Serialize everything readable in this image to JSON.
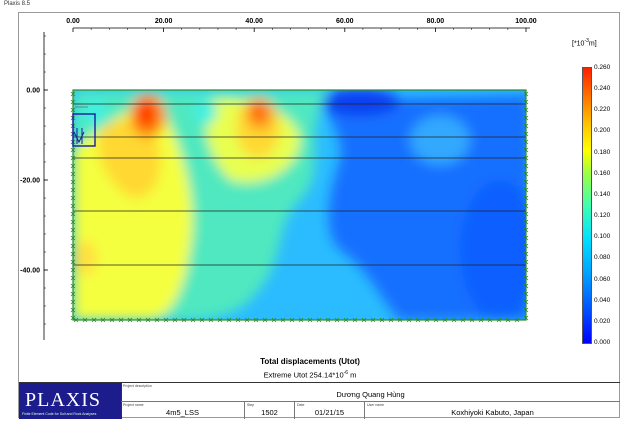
{
  "window": {
    "title": "Plaxis 8.5"
  },
  "x_axis": {
    "ticks": [
      "0.00",
      "20.00",
      "40.00",
      "60.00",
      "80.00",
      "100.00"
    ]
  },
  "y_axis": {
    "ticks": [
      "0.00",
      "-20.00",
      "-40.00"
    ]
  },
  "units": {
    "prefix": "[*10",
    "exponent": "-3",
    "suffix": "m]"
  },
  "legend": {
    "values": [
      "0.260",
      "0.240",
      "0.220",
      "0.200",
      "0.180",
      "0.160",
      "0.140",
      "0.120",
      "0.100",
      "0.080",
      "0.060",
      "0.040",
      "0.020",
      "0.000"
    ]
  },
  "caption": {
    "title": "Total displacements (Utot)",
    "extreme_prefix": "Extreme Utot 254.14*10",
    "extreme_exponent": "-6",
    "extreme_suffix": " m"
  },
  "title_block": {
    "logo_text": "PLAXIS",
    "logo_subtitle": "Finite Element Code for Soil and Rock Analyses",
    "project_description_label": "Project description",
    "project_description": "Dương Quang Hùng",
    "project_name_label": "Project name",
    "project_name": "4m5_LSS",
    "step_label": "Step",
    "step": "1502",
    "date_label": "Date",
    "date": "01/21/15",
    "user_name_label": "User name",
    "user_name": "Koxhiyoki Kabuto, Japan"
  },
  "colors": {
    "low": "#1060ff",
    "mid": "#30e0ff",
    "high": "#ff4000",
    "mesh_line": "#222222",
    "boundary": "#2a8a2a"
  }
}
